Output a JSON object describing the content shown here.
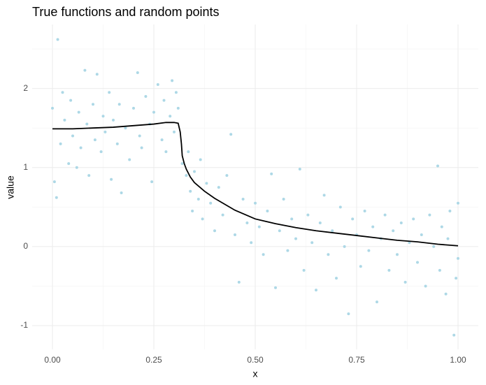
{
  "chart_data": {
    "type": "scatter",
    "title": "True functions and random points",
    "x_label": "x",
    "y_label": "value",
    "xlim": [
      -0.05,
      1.05
    ],
    "ylim": [
      -1.3,
      2.81
    ],
    "xticks": [
      {
        "value": 0,
        "label": "0.00"
      },
      {
        "value": 0.25,
        "label": "0.25"
      },
      {
        "value": 0.5,
        "label": "0.50"
      },
      {
        "value": 0.75,
        "label": "0.75"
      },
      {
        "value": 1,
        "label": "1.00"
      }
    ],
    "yticks": [
      -1,
      0,
      1,
      2
    ],
    "grid": true,
    "minor_grid": true,
    "points": {
      "color": "#add8e6",
      "x": [
        0.0,
        0.005,
        0.01,
        0.013,
        0.02,
        0.025,
        0.03,
        0.04,
        0.045,
        0.05,
        0.06,
        0.065,
        0.07,
        0.08,
        0.085,
        0.09,
        0.1,
        0.105,
        0.11,
        0.12,
        0.125,
        0.13,
        0.14,
        0.145,
        0.15,
        0.16,
        0.165,
        0.17,
        0.18,
        0.19,
        0.2,
        0.21,
        0.215,
        0.22,
        0.23,
        0.24,
        0.245,
        0.25,
        0.26,
        0.27,
        0.275,
        0.28,
        0.29,
        0.295,
        0.3,
        0.305,
        0.31,
        0.32,
        0.33,
        0.335,
        0.34,
        0.345,
        0.35,
        0.36,
        0.365,
        0.37,
        0.38,
        0.39,
        0.4,
        0.41,
        0.42,
        0.43,
        0.44,
        0.45,
        0.46,
        0.47,
        0.48,
        0.49,
        0.5,
        0.51,
        0.52,
        0.53,
        0.54,
        0.55,
        0.56,
        0.57,
        0.58,
        0.59,
        0.6,
        0.61,
        0.62,
        0.63,
        0.64,
        0.65,
        0.66,
        0.67,
        0.68,
        0.69,
        0.7,
        0.71,
        0.72,
        0.73,
        0.74,
        0.75,
        0.76,
        0.77,
        0.78,
        0.79,
        0.8,
        0.81,
        0.82,
        0.83,
        0.84,
        0.85,
        0.86,
        0.87,
        0.88,
        0.89,
        0.9,
        0.91,
        0.92,
        0.93,
        0.94,
        0.95,
        0.955,
        0.96,
        0.97,
        0.975,
        0.98,
        0.99,
        0.995,
        1.0,
        1.0
      ],
      "y": [
        1.75,
        0.82,
        0.62,
        2.62,
        1.3,
        1.95,
        1.6,
        1.05,
        1.85,
        1.4,
        1.0,
        1.7,
        1.25,
        2.23,
        1.55,
        0.9,
        1.8,
        1.35,
        2.18,
        1.2,
        1.65,
        1.45,
        1.95,
        0.85,
        1.6,
        1.3,
        1.8,
        0.68,
        1.5,
        1.1,
        1.75,
        2.2,
        1.4,
        1.25,
        1.9,
        1.55,
        0.82,
        1.7,
        2.05,
        1.35,
        1.85,
        1.2,
        1.65,
        2.1,
        1.45,
        1.95,
        1.75,
        1.05,
        0.9,
        1.2,
        0.7,
        0.45,
        0.95,
        0.6,
        1.1,
        0.35,
        0.8,
        0.55,
        0.2,
        0.75,
        0.4,
        0.9,
        1.42,
        0.15,
        -0.45,
        0.6,
        0.3,
        0.05,
        0.55,
        0.25,
        -0.1,
        0.45,
        0.92,
        -0.52,
        0.2,
        0.6,
        -0.05,
        0.35,
        0.1,
        0.98,
        -0.3,
        0.4,
        0.05,
        -0.55,
        0.3,
        0.65,
        -0.1,
        0.2,
        -0.4,
        0.5,
        0.0,
        -0.85,
        0.35,
        0.15,
        -0.25,
        0.45,
        -0.05,
        0.25,
        -0.7,
        0.1,
        0.4,
        -0.3,
        0.2,
        -0.1,
        0.3,
        -0.45,
        0.05,
        0.35,
        -0.2,
        0.15,
        -0.5,
        0.4,
        0.0,
        1.02,
        -0.3,
        0.25,
        -0.6,
        0.1,
        0.45,
        -1.12,
        -0.4,
        0.55,
        -0.15
      ]
    },
    "line": {
      "color": "#000000",
      "x": [
        0,
        0.05,
        0.1,
        0.15,
        0.2,
        0.25,
        0.28,
        0.3,
        0.31,
        0.315,
        0.318,
        0.32,
        0.325,
        0.33,
        0.34,
        0.35,
        0.375,
        0.4,
        0.45,
        0.5,
        0.55,
        0.6,
        0.65,
        0.7,
        0.75,
        0.8,
        0.85,
        0.9,
        0.95,
        1.0
      ],
      "y": [
        1.49,
        1.49,
        1.5,
        1.51,
        1.53,
        1.55,
        1.57,
        1.57,
        1.56,
        1.45,
        1.3,
        1.15,
        1.05,
        0.98,
        0.88,
        0.81,
        0.7,
        0.61,
        0.46,
        0.35,
        0.29,
        0.24,
        0.2,
        0.17,
        0.14,
        0.11,
        0.08,
        0.06,
        0.03,
        0.01
      ]
    }
  }
}
